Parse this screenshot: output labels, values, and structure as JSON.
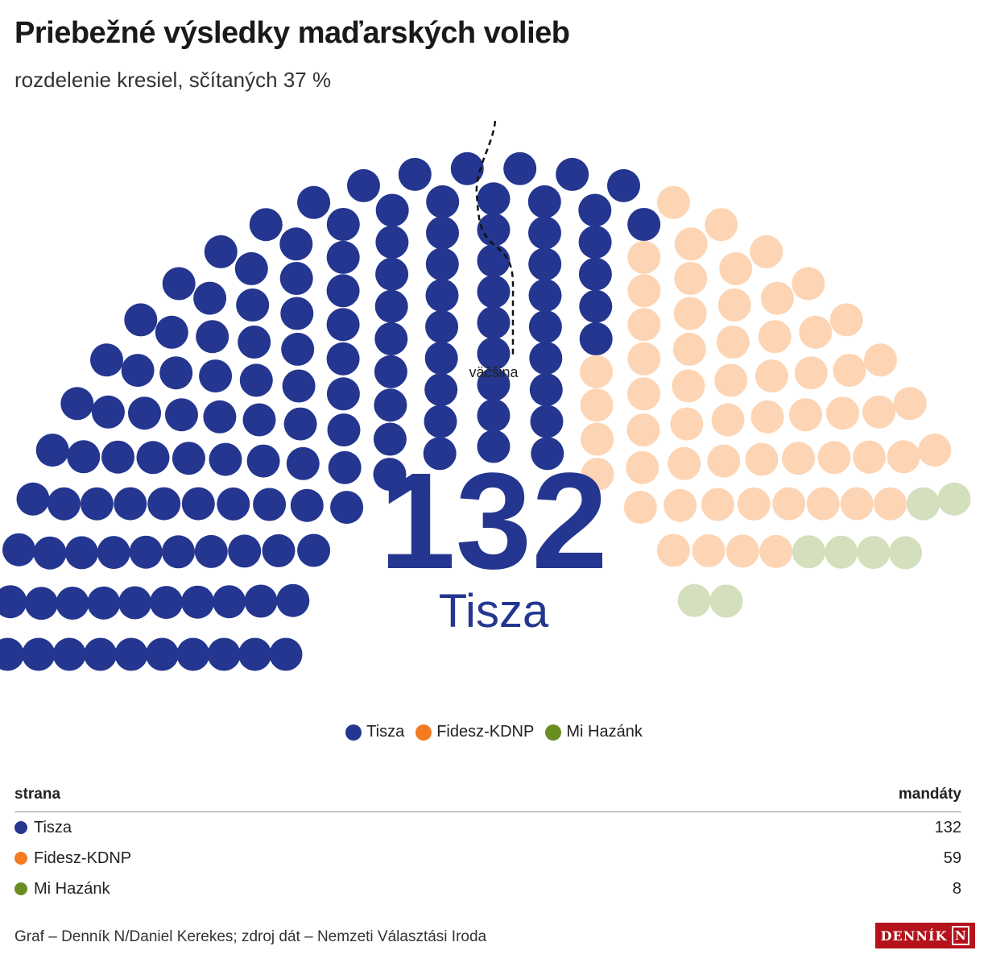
{
  "title": "Priebežné výsledky maďarských volieb",
  "subtitle": "rozdelenie kresiel, sčítaných 37 %",
  "chart_data": {
    "type": "parliament",
    "total_seats": 199,
    "series": [
      {
        "name": "Tisza",
        "value": 132,
        "color": "#24368f"
      },
      {
        "name": "Fidesz-KDNP",
        "value": 59,
        "color": "#fdd5b4"
      },
      {
        "name": "Mi Hazánk",
        "value": 8,
        "color": "#d3dfbd"
      }
    ],
    "center_value": "132",
    "center_label": "Tisza",
    "center_color": "#24368f",
    "majority_label": "väčšina"
  },
  "legend": [
    {
      "label": "Tisza",
      "color": "#24368f"
    },
    {
      "label": "Fidesz-KDNP",
      "color": "#f47b20"
    },
    {
      "label": "Mi Hazánk",
      "color": "#6b8e23"
    }
  ],
  "table": {
    "col_party": "strana",
    "col_seats": "mandáty",
    "rows": [
      {
        "party": "Tisza",
        "seats": "132",
        "color": "#24368f"
      },
      {
        "party": "Fidesz-KDNP",
        "seats": "59",
        "color": "#f47b20"
      },
      {
        "party": "Mi Hazánk",
        "seats": "8",
        "color": "#6b8e23"
      }
    ]
  },
  "footer": "Graf – Denník N/Daniel Kerekes; zdroj dát – Nemzeti Választási Iroda",
  "logo_text": "DENNÍK",
  "logo_mark": "N"
}
